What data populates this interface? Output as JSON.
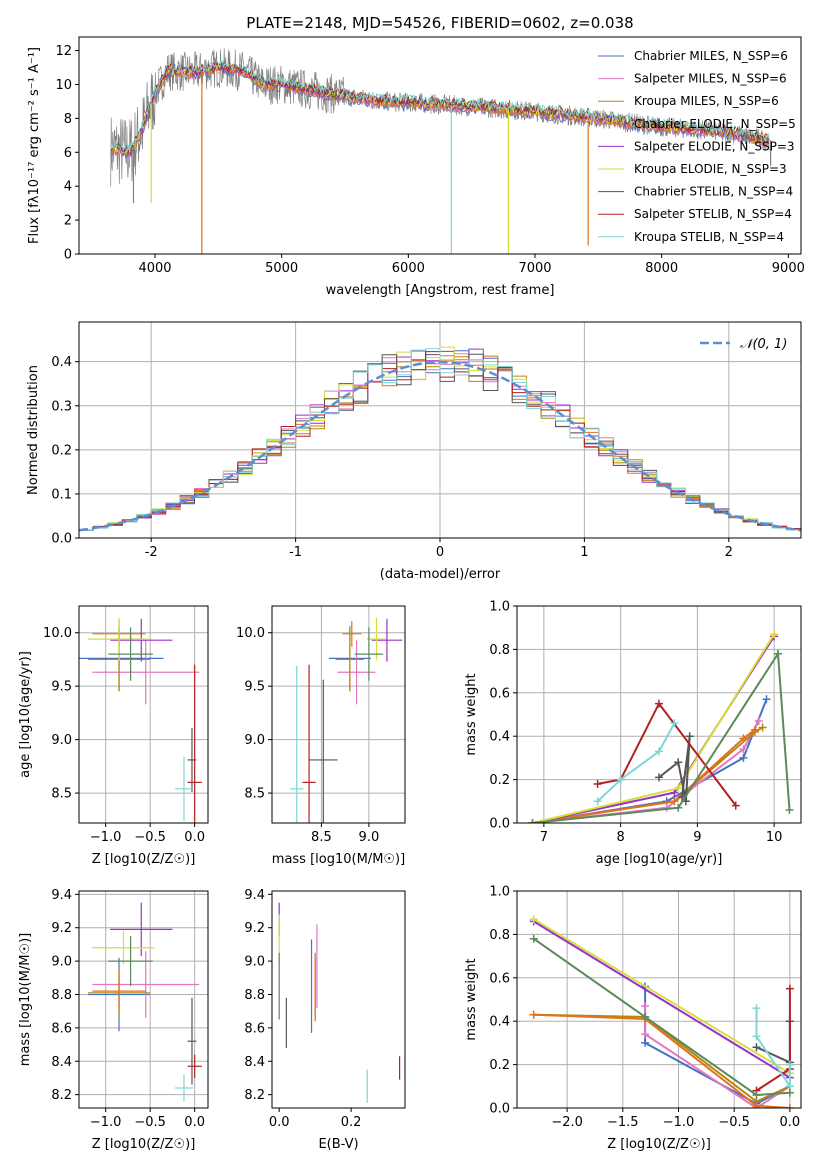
{
  "figure_title": "PLATE=2148, MJD=54526, FIBERID=0602, z=0.038",
  "colors": {
    "chabrier_miles": "#4472c4",
    "salpeter_miles": "#e377c2",
    "kroupa_miles": "#b8860b",
    "chabrier_elodie": "#e0721f",
    "salpeter_elodie": "#9b30c8",
    "kroupa_elodie": "#d6de3a",
    "chabrier_stelib": "#555555",
    "salpeter_stelib": "#b22222",
    "kroupa_stelib": "#7fd6d6",
    "data": "#808080",
    "gauss": "#5b8ed6"
  },
  "chart_data": [
    {
      "id": "spectrum",
      "type": "line",
      "xlabel": "wavelength [Angstrom, rest frame]",
      "ylabel": "Flux [fλ10⁻¹⁷ erg cm⁻² s⁻¹ A⁻¹]",
      "xlim": [
        3400,
        9100
      ],
      "ylim": [
        0,
        12.8
      ],
      "xticks": [
        4000,
        5000,
        6000,
        7000,
        8000,
        9000
      ],
      "yticks": [
        0,
        2,
        4,
        6,
        8,
        10,
        12
      ],
      "grid": false,
      "legend": "top-right",
      "legend_entries": [
        "Chabrier MILES, N_SSP=6",
        "Salpeter MILES, N_SSP=6",
        "Kroupa MILES, N_SSP=6",
        "Chabrier ELODIE, N_SSP=5",
        "Salpeter ELODIE, N_SSP=3",
        "Kroupa ELODIE, N_SSP=3",
        "Chabrier STELIB, N_SSP=4",
        "Salpeter STELIB, N_SSP=4",
        "Kroupa STELIB, N_SSP=4"
      ],
      "model_points": [
        [
          3650,
          6.2
        ],
        [
          3800,
          6.0
        ],
        [
          3900,
          7.3
        ],
        [
          3950,
          8.5
        ],
        [
          4000,
          9.5
        ],
        [
          4100,
          10.8
        ],
        [
          4300,
          10.7
        ],
        [
          4500,
          11.0
        ],
        [
          4700,
          10.8
        ],
        [
          4850,
          10.0
        ],
        [
          5000,
          10.0
        ],
        [
          5200,
          9.7
        ],
        [
          5500,
          9.3
        ],
        [
          5800,
          9.0
        ],
        [
          6100,
          8.9
        ],
        [
          6500,
          8.7
        ],
        [
          7000,
          8.4
        ],
        [
          7500,
          8.0
        ],
        [
          8000,
          7.5
        ],
        [
          8500,
          7.2
        ],
        [
          8850,
          6.7
        ]
      ]
    },
    {
      "id": "residuals",
      "type": "histogram",
      "xlabel": "(data-model)/error",
      "ylabel": "Normed distribution",
      "xlim": [
        -2.5,
        2.5
      ],
      "ylim": [
        0,
        0.49
      ],
      "xticks": [
        -2,
        -1,
        0,
        1,
        2
      ],
      "yticks": [
        0.0,
        0.1,
        0.2,
        0.3,
        0.4
      ],
      "grid": true,
      "legend": "top-right",
      "legend_entries": [
        "𝒩(0, 1)"
      ]
    },
    {
      "id": "age-Z",
      "type": "scatter",
      "xlabel": "Z [log10(Z/Z☉)]",
      "ylabel": "age  [log10(age/yr)]",
      "xlim": [
        -1.3,
        0.15
      ],
      "ylim": [
        8.22,
        10.25
      ],
      "xticks": [
        -1.0,
        -0.5,
        0.0
      ],
      "yticks": [
        8.5,
        9.0,
        9.5,
        10.0
      ],
      "grid": true,
      "points": [
        {
          "series": "chabrier_miles",
          "x": -0.85,
          "xerr": 0.5,
          "y": 9.76,
          "yerr": 0.3
        },
        {
          "series": "salpeter_miles",
          "x": -0.55,
          "xerr": 0.6,
          "y": 9.63,
          "yerr": 0.3
        },
        {
          "series": "kroupa_miles",
          "x": -0.85,
          "xerr": 0.35,
          "y": 9.75,
          "yerr": 0.3
        },
        {
          "series": "chabrier_elodie",
          "x": -0.85,
          "xerr": 0.3,
          "y": 9.99,
          "yerr": 0.12
        },
        {
          "series": "salpeter_elodie",
          "x": -0.6,
          "xerr": 0.35,
          "y": 9.93,
          "yerr": 0.2
        },
        {
          "series": "kroupa_elodie",
          "x": -0.85,
          "xerr": 0.35,
          "y": 9.94,
          "yerr": 0.2
        },
        {
          "series": "chabrier_stelib",
          "x": -0.03,
          "xerr": 0.05,
          "y": 8.81,
          "yerr": 0.3
        },
        {
          "series": "salpeter_stelib",
          "x": 0.0,
          "xerr": 0.08,
          "y": 8.6,
          "yerr": 1.1
        },
        {
          "series": "kroupa_stelib",
          "x": -0.12,
          "xerr": 0.1,
          "y": 8.54,
          "yerr": 0.3
        },
        {
          "series": "chabrier_miles_2",
          "color": "#5b8a5b",
          "x": -0.72,
          "xerr": 0.25,
          "y": 9.8,
          "yerr": 0.25
        }
      ]
    },
    {
      "id": "age-mass",
      "type": "scatter",
      "xlabel": "mass [log10(M/M☉)]",
      "ylabel": "",
      "xlim": [
        7.98,
        9.38
      ],
      "ylim": [
        8.22,
        10.25
      ],
      "xticks": [
        8.5,
        9.0
      ],
      "yticks": [
        8.5,
        9.0,
        9.5,
        10.0
      ],
      "grid": true,
      "points": [
        {
          "series": "chabrier_miles",
          "x": 8.8,
          "xerr": 0.22,
          "y": 9.76,
          "yerr": 0.3
        },
        {
          "series": "salpeter_miles",
          "x": 8.87,
          "xerr": 0.2,
          "y": 9.63,
          "yerr": 0.3
        },
        {
          "series": "kroupa_miles",
          "x": 8.8,
          "xerr": 0.15,
          "y": 9.75,
          "yerr": 0.3
        },
        {
          "series": "chabrier_elodie",
          "x": 8.82,
          "xerr": 0.1,
          "y": 9.99,
          "yerr": 0.12
        },
        {
          "series": "salpeter_elodie",
          "x": 9.19,
          "xerr": 0.16,
          "y": 9.93,
          "yerr": 0.2
        },
        {
          "series": "kroupa_elodie",
          "x": 9.08,
          "xerr": 0.1,
          "y": 9.94,
          "yerr": 0.2
        },
        {
          "series": "chabrier_stelib",
          "x": 8.52,
          "xerr": 0.15,
          "y": 8.81,
          "yerr": 0.75
        },
        {
          "series": "salpeter_stelib",
          "x": 8.37,
          "xerr": 0.07,
          "y": 8.6,
          "yerr": 1.1
        },
        {
          "series": "kroupa_stelib",
          "x": 8.24,
          "xerr": 0.07,
          "y": 8.54,
          "yerr": 1.15
        },
        {
          "series": "chabrier_miles_2",
          "color": "#5b8a5b",
          "x": 9.0,
          "xerr": 0.15,
          "y": 9.8,
          "yerr": 0.25
        }
      ]
    },
    {
      "id": "mw-age",
      "type": "line",
      "xlabel": "age  [log10(age/yr)]",
      "ylabel": "mass weight",
      "xlim": [
        6.65,
        10.35
      ],
      "ylim": [
        0,
        1
      ],
      "xticks": [
        7,
        8,
        9,
        10
      ],
      "yticks": [
        0.0,
        0.2,
        0.4,
        0.6,
        0.8,
        1.0
      ],
      "grid": true,
      "series": [
        {
          "name": "chabrier_miles",
          "x": [
            6.85,
            8.6,
            9.6,
            9.9
          ],
          "y": [
            0.0,
            0.1,
            0.3,
            0.57
          ]
        },
        {
          "name": "salpeter_miles",
          "x": [
            6.85,
            8.6,
            9.6,
            9.8
          ],
          "y": [
            0.0,
            0.07,
            0.34,
            0.47
          ]
        },
        {
          "name": "kroupa_miles",
          "x": [
            6.85,
            8.7,
            9.75,
            9.85
          ],
          "y": [
            0.0,
            0.1,
            0.42,
            0.44
          ]
        },
        {
          "name": "chabrier_elodie",
          "x": [
            6.85,
            8.7,
            9.6,
            9.75
          ],
          "y": [
            0.0,
            0.1,
            0.39,
            0.43
          ]
        },
        {
          "name": "salpeter_elodie",
          "x": [
            6.85,
            8.7,
            10.0
          ],
          "y": [
            0.0,
            0.14,
            0.86
          ]
        },
        {
          "name": "kroupa_elodie",
          "x": [
            6.85,
            8.75,
            10.0
          ],
          "y": [
            0.0,
            0.16,
            0.87
          ]
        },
        {
          "name": "chabrier_stelib",
          "x": [
            8.5,
            8.75,
            8.85,
            8.9,
            8.8
          ],
          "y": [
            0.21,
            0.28,
            0.1,
            0.4,
            0.12
          ]
        },
        {
          "name": "salpeter_stelib",
          "x": [
            7.7,
            8.0,
            8.5,
            9.5
          ],
          "y": [
            0.18,
            0.2,
            0.55,
            0.08
          ]
        },
        {
          "name": "kroupa_stelib",
          "x": [
            7.7,
            8.0,
            8.5,
            8.7
          ],
          "y": [
            0.1,
            0.2,
            0.33,
            0.46
          ]
        },
        {
          "name": "chabrier_miles_2",
          "color": "#5b8a5b",
          "x": [
            6.85,
            8.75,
            10.05,
            10.2
          ],
          "y": [
            0.0,
            0.07,
            0.78,
            0.06
          ]
        }
      ]
    },
    {
      "id": "mass-Z",
      "type": "scatter",
      "xlabel": "Z [log10(Z/Z☉)]",
      "ylabel": "mass [log10(M/M☉)]",
      "xlim": [
        -1.3,
        0.15
      ],
      "ylim": [
        8.12,
        9.42
      ],
      "xticks": [
        -1.0,
        -0.5,
        0.0
      ],
      "yticks": [
        8.2,
        8.4,
        8.6,
        8.8,
        9.0,
        9.2,
        9.4
      ],
      "grid": true,
      "points": [
        {
          "series": "chabrier_miles",
          "x": -0.85,
          "xerr": 0.35,
          "y": 8.8,
          "yerr": 0.22
        },
        {
          "series": "salpeter_miles",
          "x": -0.55,
          "xerr": 0.6,
          "y": 8.86,
          "yerr": 0.2
        },
        {
          "series": "kroupa_miles",
          "x": -0.85,
          "xerr": 0.35,
          "y": 8.81,
          "yerr": 0.15
        },
        {
          "series": "chabrier_elodie",
          "x": -0.85,
          "xerr": 0.3,
          "y": 8.82,
          "yerr": 0.1
        },
        {
          "series": "salpeter_elodie",
          "x": -0.6,
          "xerr": 0.35,
          "y": 9.19,
          "yerr": 0.16
        },
        {
          "series": "kroupa_elodie",
          "x": -0.8,
          "xerr": 0.35,
          "y": 9.08,
          "yerr": 0.1
        },
        {
          "series": "chabrier_stelib",
          "x": -0.03,
          "xerr": 0.05,
          "y": 8.52,
          "yerr": 0.26
        },
        {
          "series": "salpeter_stelib",
          "x": 0.0,
          "xerr": 0.08,
          "y": 8.37,
          "yerr": 0.07
        },
        {
          "series": "kroupa_stelib",
          "x": -0.12,
          "xerr": 0.1,
          "y": 8.24,
          "yerr": 0.08
        },
        {
          "series": "chabrier_miles_2",
          "color": "#5b8a5b",
          "x": -0.72,
          "xerr": 0.25,
          "y": 9.0,
          "yerr": 0.15
        }
      ]
    },
    {
      "id": "mass-ebv",
      "type": "scatter",
      "xlabel": "E(B-V)",
      "ylabel": "",
      "xlim": [
        -0.02,
        0.35
      ],
      "ylim": [
        8.12,
        9.42
      ],
      "xticks": [
        0.0,
        0.2
      ],
      "yticks": [
        8.2,
        8.4,
        8.6,
        8.8,
        9.0,
        9.2,
        9.4
      ],
      "grid": false,
      "points": [
        {
          "series": "chabrier_miles",
          "x": 0.09,
          "y": 8.85,
          "yerr": 0.28
        },
        {
          "series": "salpeter_miles",
          "x": 0.105,
          "y": 8.97,
          "yerr": 0.25
        },
        {
          "series": "kroupa_miles",
          "x": 0.1,
          "y": 8.85,
          "yerr": 0.2
        },
        {
          "series": "chabrier_elodie",
          "x": 0.1,
          "y": 8.84,
          "yerr": 0.2
        },
        {
          "series": "salpeter_elodie",
          "x": 0.0,
          "y": 9.25,
          "yerr": 0.1
        },
        {
          "series": "kroupa_elodie",
          "x": 0.0,
          "y": 9.13,
          "yerr": 0.15
        },
        {
          "series": "chabrier_stelib",
          "x": 0.02,
          "y": 8.63,
          "yerr": 0.15
        },
        {
          "series": "salpeter_stelib",
          "x": 0.335,
          "y": 8.36,
          "yerr": 0.07
        },
        {
          "series": "kroupa_stelib",
          "x": 0.245,
          "y": 8.25,
          "yerr": 0.1
        },
        {
          "series": "chabrier_miles_2",
          "color": "#5b8a5b",
          "x": 0.0,
          "y": 8.85,
          "yerr": 0.2
        }
      ]
    },
    {
      "id": "mw-Z",
      "type": "line",
      "xlabel": "Z [log10(Z/Z☉)]",
      "ylabel": "mass weight",
      "xlim": [
        -2.45,
        0.1
      ],
      "ylim": [
        0,
        1
      ],
      "xticks": [
        -2.0,
        -1.5,
        -1.0,
        -0.5,
        0.0
      ],
      "yticks": [
        0.0,
        0.2,
        0.4,
        0.6,
        0.8,
        1.0
      ],
      "grid": true,
      "series": [
        {
          "name": "chabrier_miles",
          "x": [
            -1.3,
            -1.3,
            -0.3,
            0.0
          ],
          "y": [
            0.56,
            0.3,
            0.02,
            0.1
          ]
        },
        {
          "name": "salpeter_miles",
          "x": [
            -1.3,
            -1.3,
            -0.3,
            0.0
          ],
          "y": [
            0.47,
            0.34,
            0.0,
            0.1
          ]
        },
        {
          "name": "kroupa_miles",
          "x": [
            -2.3,
            -1.3,
            -0.3,
            0.0
          ],
          "y": [
            0.43,
            0.42,
            0.03,
            0.1
          ]
        },
        {
          "name": "chabrier_elodie",
          "x": [
            -2.3,
            -1.3,
            -0.3,
            0.0
          ],
          "y": [
            0.43,
            0.41,
            0.01,
            0.0
          ]
        },
        {
          "name": "salpeter_elodie",
          "x": [
            -2.3,
            0.0
          ],
          "y": [
            0.86,
            0.14
          ]
        },
        {
          "name": "kroupa_elodie",
          "x": [
            -2.3,
            0.0
          ],
          "y": [
            0.87,
            0.16
          ]
        },
        {
          "name": "chabrier_stelib",
          "x": [
            -0.3,
            0.0,
            0.0
          ],
          "y": [
            0.28,
            0.21,
            0.4
          ]
        },
        {
          "name": "salpeter_stelib",
          "x": [
            -0.3,
            0.0,
            0.0
          ],
          "y": [
            0.08,
            0.18,
            0.55
          ]
        },
        {
          "name": "kroupa_stelib",
          "x": [
            -0.3,
            -0.3,
            0.0,
            0.0
          ],
          "y": [
            0.46,
            0.33,
            0.1,
            0.2
          ]
        },
        {
          "name": "chabrier_miles_2",
          "color": "#5b8a5b",
          "x": [
            -2.3,
            -1.3,
            -0.3,
            0.0
          ],
          "y": [
            0.78,
            0.42,
            0.06,
            0.07
          ]
        }
      ]
    }
  ]
}
